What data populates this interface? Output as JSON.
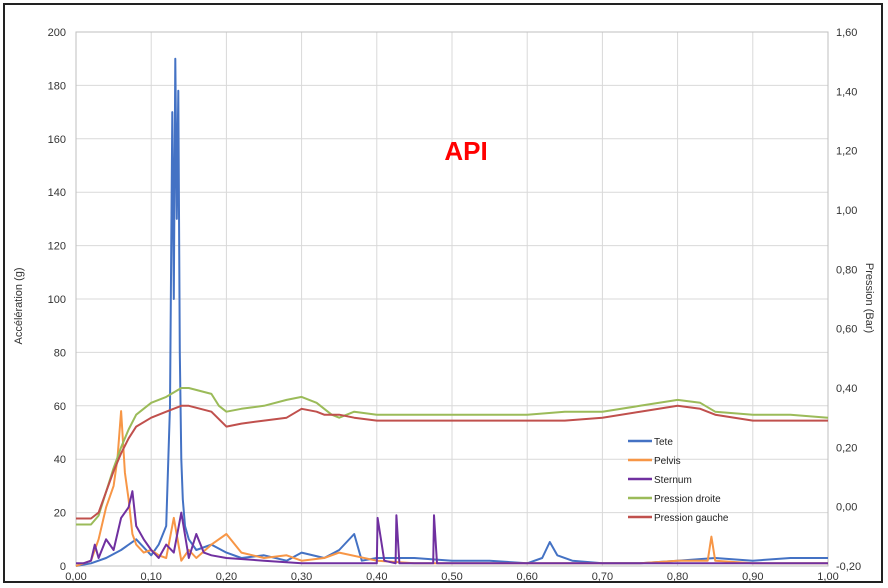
{
  "chart_data": {
    "type": "line",
    "title": "API",
    "title_color": "#ff0000",
    "xlabel": "",
    "ylabel": "Accélération (g)",
    "y2label": "Pression (Bar)",
    "xlim": [
      0,
      1
    ],
    "ylim": [
      0,
      200
    ],
    "y2lim": [
      -0.2,
      1.6
    ],
    "x_ticks": [
      "0,00",
      "0,10",
      "0,20",
      "0,30",
      "0,40",
      "0,50",
      "0,60",
      "0,70",
      "0,80",
      "0,90",
      "1,00"
    ],
    "y_ticks": [
      "0",
      "20",
      "40",
      "60",
      "80",
      "100",
      "120",
      "140",
      "160",
      "180",
      "200"
    ],
    "y2_ticks": [
      "-0,20",
      "0,00",
      "0,20",
      "0,40",
      "0,60",
      "0,80",
      "1,00",
      "1,20",
      "1,40",
      "1,60"
    ],
    "grid": true,
    "legend_position": "bottom-right",
    "series": [
      {
        "name": "Tete",
        "axis": "left",
        "color": "#4472c4",
        "x": [
          0.0,
          0.02,
          0.04,
          0.06,
          0.08,
          0.1,
          0.11,
          0.12,
          0.125,
          0.128,
          0.13,
          0.132,
          0.134,
          0.136,
          0.138,
          0.14,
          0.142,
          0.145,
          0.15,
          0.16,
          0.18,
          0.2,
          0.22,
          0.25,
          0.28,
          0.3,
          0.33,
          0.35,
          0.37,
          0.38,
          0.4,
          0.45,
          0.5,
          0.55,
          0.6,
          0.62,
          0.63,
          0.64,
          0.66,
          0.7,
          0.75,
          0.8,
          0.85,
          0.9,
          0.95,
          1.0
        ],
        "y": [
          0,
          1,
          3,
          6,
          10,
          4,
          8,
          15,
          60,
          170,
          100,
          190,
          130,
          178,
          80,
          40,
          25,
          15,
          10,
          6,
          8,
          5,
          3,
          4,
          2,
          5,
          3,
          6,
          12,
          2,
          3,
          3,
          2,
          2,
          1,
          3,
          9,
          4,
          2,
          1,
          1,
          2,
          3,
          2,
          3,
          3
        ]
      },
      {
        "name": "Pelvis",
        "axis": "left",
        "color": "#f79646",
        "x": [
          0.0,
          0.02,
          0.03,
          0.04,
          0.05,
          0.055,
          0.06,
          0.065,
          0.07,
          0.075,
          0.08,
          0.09,
          0.1,
          0.11,
          0.12,
          0.13,
          0.14,
          0.15,
          0.16,
          0.18,
          0.2,
          0.22,
          0.25,
          0.28,
          0.3,
          0.33,
          0.35,
          0.4,
          0.45,
          0.5,
          0.55,
          0.6,
          0.65,
          0.7,
          0.75,
          0.8,
          0.84,
          0.845,
          0.85,
          0.9,
          0.95,
          1.0
        ],
        "y": [
          0,
          2,
          10,
          22,
          30,
          40,
          58,
          35,
          25,
          12,
          8,
          5,
          6,
          4,
          3,
          18,
          2,
          6,
          3,
          8,
          12,
          5,
          3,
          4,
          2,
          3,
          5,
          2,
          1,
          1,
          1,
          1,
          1,
          1,
          1,
          2,
          2,
          11,
          2,
          1,
          1,
          1
        ]
      },
      {
        "name": "Sternum",
        "axis": "left",
        "color": "#7030a0",
        "x": [
          0.0,
          0.01,
          0.02,
          0.025,
          0.03,
          0.04,
          0.05,
          0.06,
          0.07,
          0.075,
          0.08,
          0.09,
          0.1,
          0.11,
          0.12,
          0.13,
          0.14,
          0.15,
          0.16,
          0.17,
          0.18,
          0.2,
          0.25,
          0.3,
          0.35,
          0.4,
          0.401,
          0.41,
          0.425,
          0.426,
          0.43,
          0.475,
          0.476,
          0.48,
          0.5,
          0.55,
          0.6,
          0.65,
          0.7,
          0.75,
          0.8,
          0.85,
          0.9,
          0.95,
          1.0
        ],
        "y": [
          1,
          1,
          2,
          8,
          3,
          10,
          6,
          18,
          22,
          28,
          15,
          10,
          6,
          3,
          8,
          5,
          20,
          3,
          12,
          5,
          4,
          3,
          2,
          1,
          1,
          1,
          18,
          2,
          1,
          19,
          1,
          1,
          19,
          1,
          1,
          1,
          1,
          1,
          1,
          1,
          1,
          1,
          1,
          1,
          1
        ]
      },
      {
        "name": "Pression droite",
        "axis": "right",
        "color": "#9bbb59",
        "x": [
          0.0,
          0.02,
          0.03,
          0.04,
          0.05,
          0.06,
          0.07,
          0.08,
          0.1,
          0.12,
          0.14,
          0.15,
          0.18,
          0.19,
          0.2,
          0.22,
          0.25,
          0.28,
          0.3,
          0.32,
          0.33,
          0.34,
          0.35,
          0.37,
          0.4,
          0.45,
          0.5,
          0.55,
          0.6,
          0.65,
          0.7,
          0.75,
          0.8,
          0.83,
          0.85,
          0.9,
          0.95,
          1.0
        ],
        "y": [
          -0.06,
          -0.06,
          -0.03,
          0.05,
          0.13,
          0.2,
          0.26,
          0.31,
          0.35,
          0.37,
          0.4,
          0.4,
          0.38,
          0.34,
          0.32,
          0.33,
          0.34,
          0.36,
          0.37,
          0.35,
          0.33,
          0.31,
          0.3,
          0.32,
          0.31,
          0.31,
          0.31,
          0.31,
          0.31,
          0.32,
          0.32,
          0.34,
          0.36,
          0.35,
          0.32,
          0.31,
          0.31,
          0.3
        ]
      },
      {
        "name": "Pression gauche",
        "axis": "right",
        "color": "#c0504d",
        "x": [
          0.0,
          0.02,
          0.03,
          0.04,
          0.05,
          0.06,
          0.07,
          0.08,
          0.1,
          0.12,
          0.14,
          0.15,
          0.18,
          0.2,
          0.22,
          0.25,
          0.28,
          0.3,
          0.32,
          0.33,
          0.35,
          0.37,
          0.4,
          0.45,
          0.5,
          0.55,
          0.6,
          0.65,
          0.7,
          0.75,
          0.8,
          0.83,
          0.85,
          0.9,
          0.95,
          1.0
        ],
        "y": [
          -0.04,
          -0.04,
          -0.02,
          0.05,
          0.12,
          0.18,
          0.23,
          0.27,
          0.3,
          0.32,
          0.34,
          0.34,
          0.32,
          0.27,
          0.28,
          0.29,
          0.3,
          0.33,
          0.32,
          0.31,
          0.31,
          0.3,
          0.29,
          0.29,
          0.29,
          0.29,
          0.29,
          0.29,
          0.3,
          0.32,
          0.34,
          0.33,
          0.31,
          0.29,
          0.29,
          0.29
        ]
      }
    ]
  }
}
